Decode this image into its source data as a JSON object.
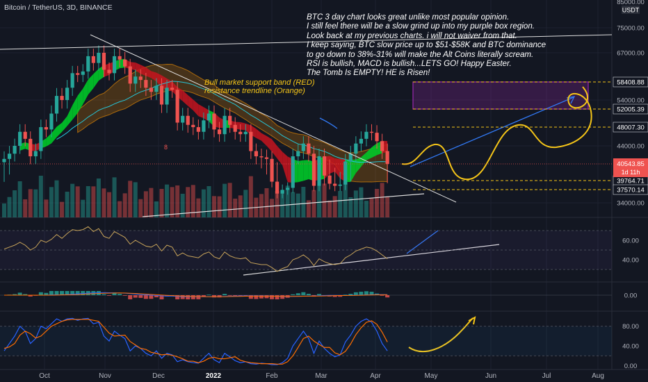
{
  "header": {
    "symbol_line": "Bitcoin / TetherUS, 3D, BINANCE"
  },
  "annotation_note": [
    "BTC 3 day chart looks great unlike most popular opinion.",
    "I still feel there will be a slow grind up into my purple box region.",
    "Look back at my previous charts. i will not waiver from that.",
    " I keep saying, BTC slow price up to $51-$58K and BTC dominance",
    "  to go down to 38%-31% will make the Alt Coins literally scream.",
    "RSI is bullish, MACD is bullish...LETS GO! Happy Easter.",
    "The Tomb Is EMPTY! HE is Risen!"
  ],
  "labels": {
    "support_band": "Bull market support band (RED)",
    "resistance_line": "resistance trendline (Orange)"
  },
  "colors": {
    "background": "#131722",
    "up": "#26a69a",
    "down": "#ef5350",
    "annotation": "#f5c518",
    "box": "#9c27b0",
    "trendline": "#e0e0e0",
    "projection": "#3179f5"
  },
  "chart_data": [
    {
      "type": "candlestick",
      "title": "Bitcoin / TetherUS, 3D, BINANCE",
      "currency": "USDT",
      "ylim": [
        32000,
        85000
      ],
      "y_ticks": [
        34000,
        44000,
        54000,
        67000,
        75000
      ],
      "y_top_tick": 85000,
      "x_labels": [
        "Oct",
        "Nov",
        "Dec",
        "2022",
        "Feb",
        "Mar",
        "Apr",
        "May",
        "Jun",
        "Jul",
        "Aug"
      ],
      "close": [
        41500,
        42500,
        44000,
        47000,
        45500,
        42000,
        43000,
        48000,
        47500,
        51000,
        55000,
        54000,
        57000,
        61000,
        60500,
        61500,
        66000,
        64000,
        67000,
        62000,
        61000,
        66000,
        65000,
        63000,
        58000,
        60000,
        59000,
        57000,
        56000,
        57500,
        53000,
        57000,
        56500,
        49000,
        50500,
        48500,
        48000,
        47000,
        49500,
        51000,
        47500,
        46500,
        50500,
        48500,
        47000,
        46500,
        47000,
        43000,
        42000,
        41800,
        41500,
        39500,
        36500,
        37500,
        38000,
        42000,
        43000,
        44500,
        42500,
        38500,
        42000,
        40000,
        39000,
        38500,
        38800,
        41000,
        42500,
        44500,
        45500,
        47000,
        46800,
        45000,
        43000,
        40543.85
      ],
      "price_levels": [
        {
          "value": 58408.88,
          "label": "58408.88",
          "color": "#ffffff"
        },
        {
          "value": 52005.39,
          "label": "52005.39",
          "color": "#ffffff"
        },
        {
          "value": 48007.3,
          "label": "48007.30",
          "color": "#ffffff"
        },
        {
          "value": 39764.71,
          "label": "39764.71",
          "color": "#ffffff"
        },
        {
          "value": 37570.14,
          "label": "37570.14",
          "color": "#ffffff"
        }
      ],
      "last_price": {
        "value": 40543.85,
        "label": "40543.85",
        "countdown": "1d 11h"
      },
      "target_box": {
        "low": 52005.39,
        "high": 58408.88
      }
    },
    {
      "type": "line",
      "name_hint": "RSI",
      "ylim": [
        20,
        80
      ],
      "y_ticks": [
        40,
        60
      ],
      "values": [
        51,
        53,
        55,
        58,
        55,
        50,
        53,
        60,
        58,
        61,
        66,
        62,
        67,
        71,
        70,
        71,
        74,
        69,
        72,
        64,
        62,
        69,
        66,
        63,
        56,
        60,
        57,
        54,
        53,
        56,
        49,
        55,
        53,
        44,
        47,
        44,
        43,
        42,
        46,
        48,
        43,
        41,
        48,
        44,
        42,
        41,
        42,
        37,
        36,
        35,
        35,
        32,
        28,
        31,
        33,
        40,
        42,
        45,
        41,
        34,
        41,
        38,
        36,
        35,
        36,
        42,
        45,
        49,
        51,
        53,
        52,
        49,
        45,
        41
      ]
    },
    {
      "type": "bar",
      "name_hint": "MACD",
      "y_ticks": [
        0
      ],
      "y_tick_labels": [
        "0.00"
      ]
    },
    {
      "type": "line",
      "name_hint": "Stochastic RSI",
      "ylim": [
        -5,
        105
      ],
      "y_ticks": [
        0,
        40,
        80
      ],
      "k": [
        30,
        45,
        60,
        80,
        70,
        45,
        55,
        80,
        75,
        85,
        95,
        90,
        95,
        96,
        92,
        95,
        96,
        85,
        88,
        60,
        50,
        70,
        62,
        55,
        30,
        40,
        35,
        25,
        20,
        30,
        15,
        25,
        22,
        8,
        12,
        8,
        6,
        5,
        15,
        25,
        12,
        6,
        25,
        18,
        10,
        6,
        8,
        4,
        3,
        5,
        4,
        2,
        2,
        6,
        15,
        40,
        55,
        70,
        55,
        25,
        50,
        35,
        25,
        18,
        22,
        48,
        62,
        80,
        90,
        95,
        88,
        70,
        45,
        30
      ],
      "d": [
        35,
        38,
        45,
        62,
        70,
        65,
        56,
        60,
        70,
        80,
        85,
        90,
        93,
        94,
        94,
        94,
        94,
        92,
        90,
        78,
        66,
        60,
        61,
        62,
        49,
        42,
        35,
        33,
        27,
        25,
        22,
        23,
        21,
        18,
        14,
        9,
        9,
        6,
        9,
        15,
        17,
        14,
        14,
        16,
        18,
        11,
        8,
        6,
        5,
        4,
        4,
        4,
        3,
        3,
        8,
        20,
        37,
        55,
        60,
        50,
        43,
        37,
        37,
        26,
        22,
        29,
        44,
        63,
        77,
        88,
        91,
        84,
        68,
        48
      ]
    }
  ]
}
